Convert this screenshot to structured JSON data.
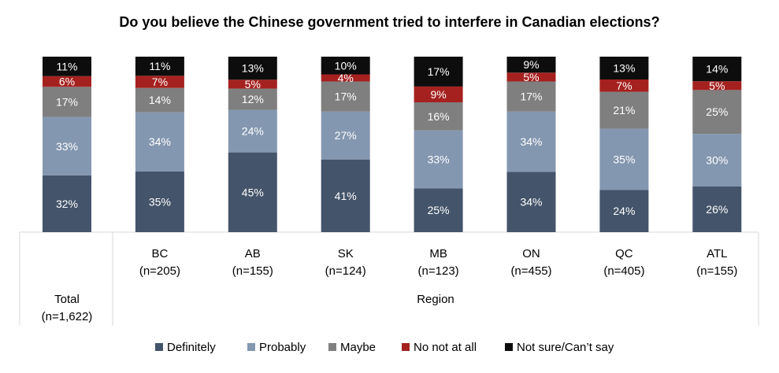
{
  "chart_data": {
    "type": "bar",
    "stacked": true,
    "percent": true,
    "title": "Do you believe the Chinese government tried to interfere in Canadian elections?",
    "categories": [
      {
        "name": "Total",
        "n": "(n=1,622)"
      },
      {
        "name": "BC",
        "n": "(n=205)"
      },
      {
        "name": "AB",
        "n": "(n=155)"
      },
      {
        "name": "SK",
        "n": "(n=124)"
      },
      {
        "name": "MB",
        "n": "(n=123)"
      },
      {
        "name": "ON",
        "n": "(n=455)"
      },
      {
        "name": "QC",
        "n": "(n=405)"
      },
      {
        "name": "ATL",
        "n": "(n=155)"
      }
    ],
    "group_label": "Region",
    "series": [
      {
        "name": "Definitely",
        "color": "#44546a",
        "label_color": "#ffffff",
        "values": [
          32,
          35,
          45,
          41,
          25,
          34,
          24,
          26
        ]
      },
      {
        "name": "Probably",
        "color": "#8497b0",
        "label_color": "#ffffff",
        "values": [
          33,
          34,
          24,
          27,
          33,
          34,
          35,
          30
        ]
      },
      {
        "name": "Maybe",
        "color": "#7f7f7f",
        "label_color": "#ffffff",
        "values": [
          17,
          14,
          12,
          17,
          16,
          17,
          21,
          25
        ]
      },
      {
        "name": "No not at all",
        "color": "#a5211f",
        "label_color": "#ffffff",
        "values": [
          6,
          7,
          5,
          4,
          9,
          5,
          7,
          5
        ]
      },
      {
        "name": "Not sure/Can’t say",
        "color": "#0d0d0d",
        "label_color": "#ffffff",
        "values": [
          11,
          11,
          13,
          10,
          17,
          9,
          13,
          14
        ]
      }
    ],
    "legend_position": "bottom",
    "grid": false,
    "ylim": [
      0,
      100
    ]
  }
}
